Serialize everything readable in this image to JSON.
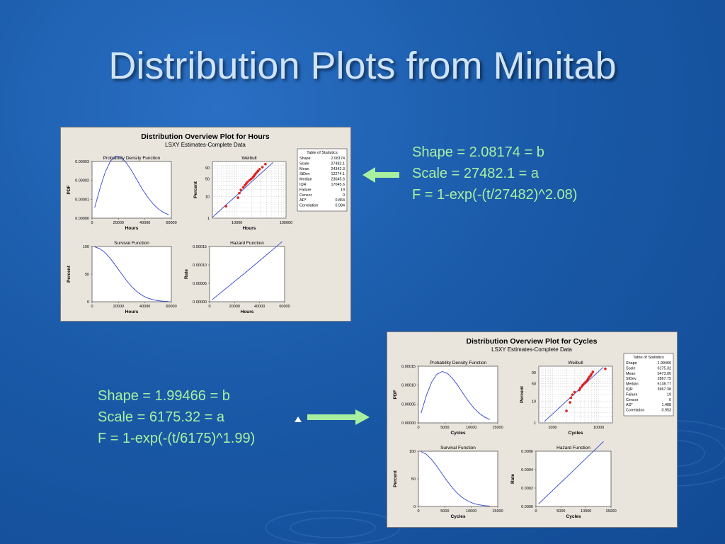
{
  "slide": {
    "title": "Distribution Plots from Minitab",
    "colors": {
      "background": "#1a5aa8",
      "title": "#cfe3f5",
      "info_text": "#a8f0a0",
      "arrow": "#a8f0a0",
      "curve": "#3344cc",
      "points": "#e02020"
    }
  },
  "chart_data": [
    {
      "type": "panel",
      "title": "Distribution Overview Plot for Hours",
      "subtitle": "LSXY Estimates-Complete Data",
      "stats": {
        "title": "Table of Statistics",
        "rows": [
          [
            "Shape",
            "2.08174"
          ],
          [
            "Scale",
            "27482.1"
          ],
          [
            "Mean",
            "24342.3"
          ],
          [
            "StDev",
            "12274.1"
          ],
          [
            "Median",
            "23045.6"
          ],
          [
            "IQR",
            "17045.6"
          ],
          [
            "Failure",
            "19"
          ],
          [
            "Censor",
            "0"
          ],
          [
            "AD*",
            "0.864"
          ],
          [
            "Correlation",
            "0.984"
          ]
        ]
      },
      "plots": {
        "pdf": {
          "title": "Probability Density Function",
          "xlabel": "Hours",
          "ylabel": "PDF",
          "xlim": [
            0,
            60000
          ],
          "ylim": [
            0,
            4e-05
          ],
          "xticks": [
            "0",
            "20000",
            "40000",
            "60000"
          ],
          "yticks": [
            "0.00000",
            "0.00001",
            "0.00002",
            "0.00003"
          ],
          "shape": 2.08174,
          "scale": 27482.1,
          "x": [
            2000,
            6000,
            10000,
            14000,
            18000,
            22000,
            26000,
            30000,
            34000,
            38000,
            42000,
            46000,
            50000,
            54000,
            58000
          ],
          "y": [
            5.6e-06,
            1.57e-05,
            2.44e-05,
            3.03e-05,
            3.28e-05,
            3.22e-05,
            2.93e-05,
            2.51e-05,
            2.02e-05,
            1.54e-05,
            1.12e-05,
            7.7e-06,
            5e-06,
            3.1e-06,
            1.8e-06
          ]
        },
        "weibull": {
          "title": "Weibull",
          "xlabel": "Hours",
          "ylabel": "Percent",
          "xticks": [
            "10000",
            "100000"
          ],
          "yticks": [
            "1",
            "10",
            "50",
            "90"
          ],
          "points_hours": [
            6000,
            10500,
            11200,
            12000,
            13500,
            14500,
            15500,
            16500,
            18000,
            19500,
            21000,
            22000,
            23000,
            24000,
            25500,
            27000,
            29000,
            33000,
            38000
          ],
          "points_percent": [
            3.6,
            8.8,
            14.0,
            19.2,
            24.4,
            29.5,
            34.7,
            39.9,
            45.1,
            50.3,
            55.5,
            60.6,
            65.8,
            71.0,
            76.2,
            81.3,
            86.5,
            91.7,
            96.9
          ]
        },
        "survival": {
          "title": "Survival Function",
          "xlabel": "Hours",
          "ylabel": "Percent",
          "xticks": [
            "0",
            "20000",
            "40000",
            "60000"
          ],
          "yticks": [
            "0",
            "50",
            "100"
          ],
          "x": [
            2000,
            6000,
            10000,
            14000,
            18000,
            22000,
            26000,
            30000,
            34000,
            38000,
            42000,
            46000,
            50000,
            54000,
            58000
          ],
          "y": [
            99.5,
            95.8,
            88.6,
            77.8,
            65.1,
            51.6,
            38.6,
            27.3,
            18.2,
            11.4,
            6.7,
            3.7,
            1.9,
            0.9,
            0.4
          ]
        },
        "hazard": {
          "title": "Hazard Function",
          "xlabel": "Hours",
          "ylabel": "Rate",
          "xticks": [
            "0",
            "20000",
            "40000",
            "60000"
          ],
          "yticks": [
            "0.00000",
            "0.00005",
            "0.00010",
            "0.00015"
          ],
          "x": [
            2000,
            30000,
            58000
          ],
          "y": [
            5.3e-06,
            8.29e-05,
            0.000163
          ]
        }
      }
    },
    {
      "type": "panel",
      "title": "Distribution Overview Plot for Cycles",
      "subtitle": "LSXY Estimates-Complete Data",
      "stats": {
        "title": "Table of Statistics",
        "rows": [
          [
            "Shape",
            "1.99466"
          ],
          [
            "Scale",
            "6175.32"
          ],
          [
            "Mean",
            "5473.00"
          ],
          [
            "StDev",
            "2867.75"
          ],
          [
            "Median",
            "5138.77"
          ],
          [
            "IQR",
            "3967.38"
          ],
          [
            "Failure",
            "19"
          ],
          [
            "Censor",
            "0"
          ],
          [
            "AD*",
            "1.488"
          ],
          [
            "Correlation",
            "0.953"
          ]
        ]
      },
      "plots": {
        "pdf": {
          "title": "Probability Density Function",
          "xlabel": "Cycles",
          "ylabel": "PDF",
          "xlim": [
            0,
            15000
          ],
          "ylim": [
            0,
            0.00015
          ],
          "xticks": [
            "0",
            "5000",
            "10000",
            "15000"
          ],
          "yticks": [
            "0.00000",
            "0.00005",
            "0.00010",
            "0.00015"
          ],
          "x": [
            500,
            1500,
            2500,
            3500,
            4500,
            5500,
            6500,
            7500,
            8500,
            9500,
            10500,
            11500,
            12500,
            13500
          ],
          "y": [
            2.59e-05,
            7.28e-05,
            0.000108,
            0.0001288,
            0.000136,
            0.0001309,
            0.0001169,
            9.78e-05,
            7.66e-05,
            5.64e-05,
            3.9e-05,
            2.53e-05,
            1.54e-05,
            8.8e-06
          ]
        },
        "weibull": {
          "title": "Weibull",
          "xlabel": "Cycles",
          "ylabel": "Percent",
          "xticks": [
            "1000",
            "10000"
          ],
          "yticks": [
            "1",
            "10",
            "50",
            "90"
          ],
          "points_cycles": [
            2000,
            2400,
            2500,
            2700,
            3000,
            3800,
            4000,
            4300,
            4500,
            4800,
            5200,
            5500,
            5800,
            6000,
            6300,
            6700,
            7000,
            7500,
            14000
          ],
          "points_percent": [
            3.6,
            8.8,
            14.0,
            19.2,
            24.4,
            29.5,
            34.7,
            39.9,
            45.1,
            50.3,
            55.5,
            60.6,
            65.8,
            71.0,
            76.2,
            81.3,
            86.5,
            91.7,
            96.9
          ]
        },
        "survival": {
          "title": "Survival Function",
          "xlabel": "Cycles",
          "ylabel": "Percent",
          "xticks": [
            "0",
            "5000",
            "10000",
            "15000"
          ],
          "yticks": [
            "0",
            "50",
            "100"
          ],
          "x": [
            500,
            1500,
            2500,
            3500,
            4500,
            5500,
            6500,
            7500,
            8500,
            9500,
            10500,
            11500,
            12500,
            13500
          ],
          "y": [
            99.4,
            94.3,
            84.9,
            72.6,
            58.7,
            45.1,
            32.9,
            22.7,
            14.8,
            9.1,
            5.3,
            2.9,
            1.5,
            0.7
          ]
        },
        "hazard": {
          "title": "Hazard Function",
          "xlabel": "Cycles",
          "ylabel": "Rate",
          "xticks": [
            "0",
            "5000",
            "10000",
            "15000"
          ],
          "yticks": [
            "0.0000",
            "0.0002",
            "0.0004",
            "0.0006"
          ],
          "x": [
            500,
            7000,
            13500
          ],
          "y": [
            2.6e-05,
            0.000365,
            0.000705
          ]
        }
      }
    }
  ],
  "annotations": {
    "hours": {
      "line1": "Shape = 2.08174 = b",
      "line2": "Scale = 27482.1 = a",
      "line3": "F = 1-exp(-(t/27482)^2.08)"
    },
    "cycles": {
      "line1": "Shape = 1.99466 = b",
      "line2": "Scale = 6175.32 = a",
      "line3": "F = 1-exp(-(t/6175)^1.99)"
    }
  }
}
